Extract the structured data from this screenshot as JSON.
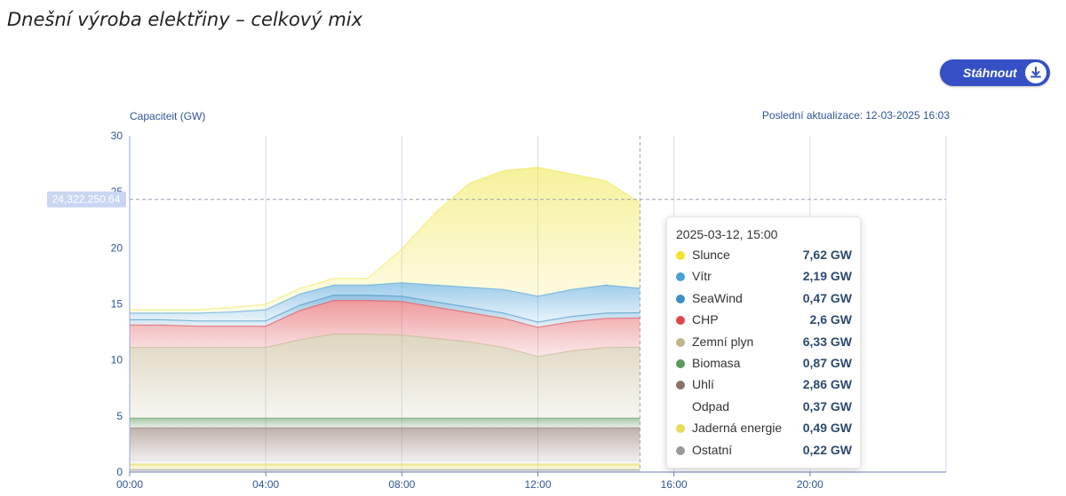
{
  "page": {
    "title": "Dnešní výroba elektřiny – celkový mix",
    "download_label": "Stáhnout",
    "download_icon": "download-icon",
    "updated_label": "Poslední aktualizace:",
    "updated_value": "12-03-2025 16:03"
  },
  "chart_data": {
    "type": "area",
    "stacked": true,
    "ylabel": "Capaciteit (GW)",
    "ylim": [
      0,
      30
    ],
    "yticks": [
      "0",
      "5",
      "10",
      "15",
      "20",
      "25",
      "30"
    ],
    "xticks": [
      "00:00",
      "04:00",
      "08:00",
      "12:00",
      "16:00",
      "20:00"
    ],
    "xlim_hours": [
      0,
      24
    ],
    "x_hours": [
      0,
      1,
      2,
      3,
      4,
      5,
      6,
      7,
      8,
      9,
      10,
      11,
      12,
      13,
      14,
      15
    ],
    "crosshair": {
      "x_hour": 15,
      "y_value": 24.32225064,
      "y_label": "24,322,250.64"
    },
    "grid": true,
    "series": [
      {
        "name": "Ostatní",
        "color": "#999999",
        "values": [
          0.22,
          0.22,
          0.22,
          0.22,
          0.22,
          0.22,
          0.22,
          0.22,
          0.22,
          0.22,
          0.22,
          0.22,
          0.22,
          0.22,
          0.22,
          0.22
        ]
      },
      {
        "name": "Jaderná energie",
        "color": "#e8dc5a",
        "values": [
          0.49,
          0.49,
          0.49,
          0.49,
          0.49,
          0.49,
          0.49,
          0.49,
          0.49,
          0.49,
          0.49,
          0.49,
          0.49,
          0.49,
          0.49,
          0.49
        ]
      },
      {
        "name": "Odpad",
        "color": "#dddddd",
        "values": [
          0.37,
          0.37,
          0.37,
          0.37,
          0.37,
          0.37,
          0.37,
          0.37,
          0.37,
          0.37,
          0.37,
          0.37,
          0.37,
          0.37,
          0.37,
          0.37
        ]
      },
      {
        "name": "Uhlí",
        "color": "#8a7268",
        "values": [
          2.86,
          2.86,
          2.86,
          2.86,
          2.86,
          2.86,
          2.86,
          2.86,
          2.86,
          2.86,
          2.86,
          2.86,
          2.86,
          2.86,
          2.86,
          2.86
        ]
      },
      {
        "name": "Biomasa",
        "color": "#5a9a5a",
        "values": [
          0.87,
          0.87,
          0.87,
          0.87,
          0.87,
          0.87,
          0.87,
          0.87,
          0.87,
          0.87,
          0.87,
          0.87,
          0.87,
          0.87,
          0.87,
          0.87
        ]
      },
      {
        "name": "Zemní plyn",
        "color": "#c2b48a",
        "values": [
          6.3,
          6.3,
          6.3,
          6.3,
          6.3,
          7.0,
          7.5,
          7.5,
          7.4,
          7.1,
          6.8,
          6.3,
          5.5,
          6.0,
          6.3,
          6.33
        ]
      },
      {
        "name": "CHP",
        "color": "#e0474c",
        "values": [
          2.0,
          2.0,
          1.9,
          1.9,
          1.9,
          2.6,
          3.0,
          3.0,
          3.0,
          2.8,
          2.6,
          2.6,
          2.6,
          2.6,
          2.6,
          2.6
        ]
      },
      {
        "name": "SeaWind",
        "color": "#3a8fc6",
        "values": [
          0.47,
          0.47,
          0.47,
          0.47,
          0.47,
          0.47,
          0.47,
          0.47,
          0.47,
          0.47,
          0.47,
          0.47,
          0.47,
          0.47,
          0.47,
          0.47
        ]
      },
      {
        "name": "Vítr",
        "color": "#4aa0d8",
        "values": [
          0.6,
          0.6,
          0.7,
          0.8,
          1.0,
          1.0,
          0.9,
          0.9,
          1.2,
          1.5,
          1.8,
          2.1,
          2.3,
          2.4,
          2.5,
          2.19
        ]
      },
      {
        "name": "Slunce",
        "color": "#f0e64a",
        "values": [
          0.3,
          0.3,
          0.3,
          0.4,
          0.5,
          0.5,
          0.6,
          0.6,
          3.0,
          6.5,
          9.3,
          10.6,
          11.5,
          10.3,
          9.3,
          7.62
        ]
      }
    ],
    "tooltip": {
      "date": "2025-03-12, 15:00",
      "rows": [
        {
          "name": "Slunce",
          "value": "7,62 GW",
          "color": "#f0e22e"
        },
        {
          "name": "Vítr",
          "value": "2,19 GW",
          "color": "#4aa0d8"
        },
        {
          "name": "SeaWind",
          "value": "0,47 GW",
          "color": "#3a8fc6"
        },
        {
          "name": "CHP",
          "value": "2,6 GW",
          "color": "#e0474c"
        },
        {
          "name": "Zemní plyn",
          "value": "6,33 GW",
          "color": "#c2b48a"
        },
        {
          "name": "Biomasa",
          "value": "0,87 GW",
          "color": "#5a9a5a"
        },
        {
          "name": "Uhlí",
          "value": "2,86 GW",
          "color": "#8a7268"
        },
        {
          "name": "Odpad",
          "value": "0,37 GW",
          "color": "#ffffff"
        },
        {
          "name": "Jaderná energie",
          "value": "0,49 GW",
          "color": "#e8dc5a"
        },
        {
          "name": "Ostatní",
          "value": "0,22 GW",
          "color": "#999999"
        }
      ]
    }
  }
}
